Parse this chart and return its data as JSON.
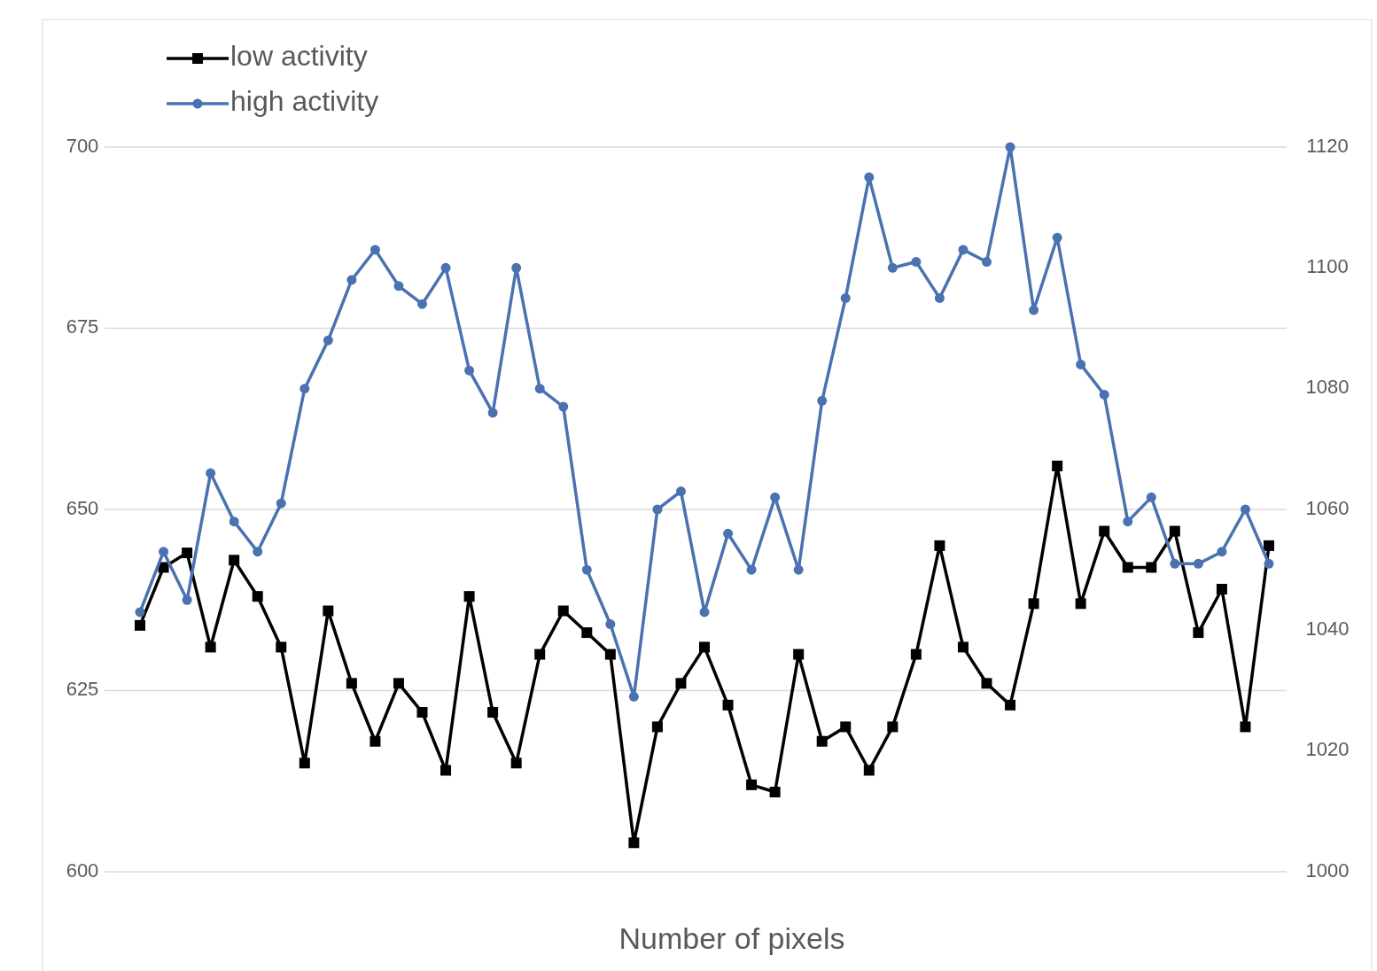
{
  "chart_data": {
    "type": "line",
    "xlabel": "Number of pixels",
    "categories": [
      null,
      null,
      null,
      null,
      null,
      null,
      null,
      null,
      null,
      null,
      null,
      null,
      null,
      null,
      null,
      null,
      null,
      null,
      null,
      null,
      null,
      null,
      null,
      null,
      null,
      null,
      null,
      null,
      null,
      null,
      null,
      null,
      null,
      null,
      null,
      null,
      null,
      null,
      null,
      null,
      null,
      null,
      null,
      null,
      null,
      null,
      null,
      null,
      null
    ],
    "series": [
      {
        "name": "low activity",
        "color": "#000000",
        "marker": "square",
        "values": [
          634,
          642,
          644,
          631,
          643,
          638,
          631,
          615,
          636,
          626,
          618,
          626,
          622,
          614,
          638,
          622,
          615,
          630,
          636,
          633,
          630,
          604,
          620,
          626,
          631,
          623,
          612,
          611,
          630,
          618,
          620,
          614,
          620,
          630,
          645,
          631,
          626,
          623,
          637,
          656,
          637,
          647,
          642,
          642,
          647,
          633,
          639,
          620,
          645
        ]
      },
      {
        "name": "high activity",
        "color": "#4a72b0",
        "marker": "circle",
        "axis": "y2",
        "values": [
          1043,
          1053,
          1045,
          1066,
          1058,
          1053,
          1061,
          1080,
          1088,
          1098,
          1103,
          1097,
          1094,
          1100,
          1083,
          1076,
          1100,
          1080,
          1077,
          1050,
          1041,
          1029,
          1060,
          1063,
          1043,
          1056,
          1050,
          1062,
          1050,
          1078,
          1095,
          1115,
          1100,
          1101,
          1095,
          1103,
          1101,
          1120,
          1093,
          1105,
          1084,
          1079,
          1058,
          1062,
          1051,
          1051,
          1053,
          1060,
          1051
        ]
      }
    ],
    "ylim": [
      600,
      700
    ],
    "yticks": [
      600,
      625,
      650,
      675,
      700
    ],
    "y2lim": [
      1000,
      1120
    ],
    "y2ticks": [
      1000,
      1020,
      1040,
      1060,
      1080,
      1100,
      1120
    ],
    "grid": "y",
    "legend": "top left",
    "line_style": "solid"
  }
}
